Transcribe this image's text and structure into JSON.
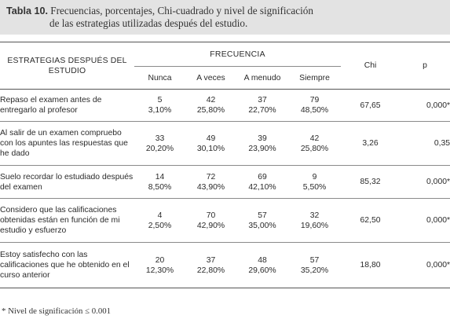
{
  "caption": {
    "label": "Tabla 10",
    "separator": ".",
    "line1": " Frecuencias, porcentajes, Chi-cuadrado y nivel de significación",
    "line2": "de las estrategias utilizadas después del estudio."
  },
  "table": {
    "headers": {
      "strategies": "ESTRATEGIAS DESPUÉS DEL ESTUDIO",
      "frequency": "FRECUENCIA",
      "nunca": "Nunca",
      "a_veces": "A veces",
      "a_menudo": "A menudo",
      "siempre": "Siempre",
      "chi": "Chi",
      "p": "p"
    },
    "rows": [
      {
        "strategy": "Repaso el examen antes de entregarlo al profesor",
        "nunca": {
          "n": "5",
          "pct": "3,10%"
        },
        "a_veces": {
          "n": "42",
          "pct": "25,80%"
        },
        "a_menudo": {
          "n": "37",
          "pct": "22,70%"
        },
        "siempre": {
          "n": "79",
          "pct": "48,50%"
        },
        "chi": "67,65",
        "p": "0,000*"
      },
      {
        "strategy": "Al salir de un examen compruebo con los apuntes las respuestas que he dado",
        "nunca": {
          "n": "33",
          "pct": "20,20%"
        },
        "a_veces": {
          "n": "49",
          "pct": "30,10%"
        },
        "a_menudo": {
          "n": "39",
          "pct": "23,90%"
        },
        "siempre": {
          "n": "42",
          "pct": "25,80%"
        },
        "chi": "3,26",
        "p": "0,35"
      },
      {
        "strategy": "Suelo recordar lo estudiado después del examen",
        "nunca": {
          "n": "14",
          "pct": "8,50%"
        },
        "a_veces": {
          "n": "72",
          "pct": "43,90%"
        },
        "a_menudo": {
          "n": "69",
          "pct": "42,10%"
        },
        "siempre": {
          "n": "9",
          "pct": "5,50%"
        },
        "chi": "85,32",
        "p": "0,000*"
      },
      {
        "strategy": "Considero que las calificaciones obtenidas están en función de mi estudio y esfuerzo",
        "nunca": {
          "n": "4",
          "pct": "2,50%"
        },
        "a_veces": {
          "n": "70",
          "pct": "42,90%"
        },
        "a_menudo": {
          "n": "57",
          "pct": "35,00%"
        },
        "siempre": {
          "n": "32",
          "pct": "19,60%"
        },
        "chi": "62,50",
        "p": "0,000*"
      },
      {
        "strategy": "Estoy satisfecho con las calificaciones que he obtenido en el curso anterior",
        "nunca": {
          "n": "20",
          "pct": "12,30%"
        },
        "a_veces": {
          "n": "37",
          "pct": "22,80%"
        },
        "a_menudo": {
          "n": "48",
          "pct": "29,60%"
        },
        "siempre": {
          "n": "57",
          "pct": "35,20%"
        },
        "chi": "18,80",
        "p": "0,000*"
      }
    ]
  },
  "note": "* Nivel de significación ≤ 0.001",
  "colors": {
    "caption_background": "#e3e3e3",
    "text": "#2b2b2b",
    "rules": "#555555"
  }
}
